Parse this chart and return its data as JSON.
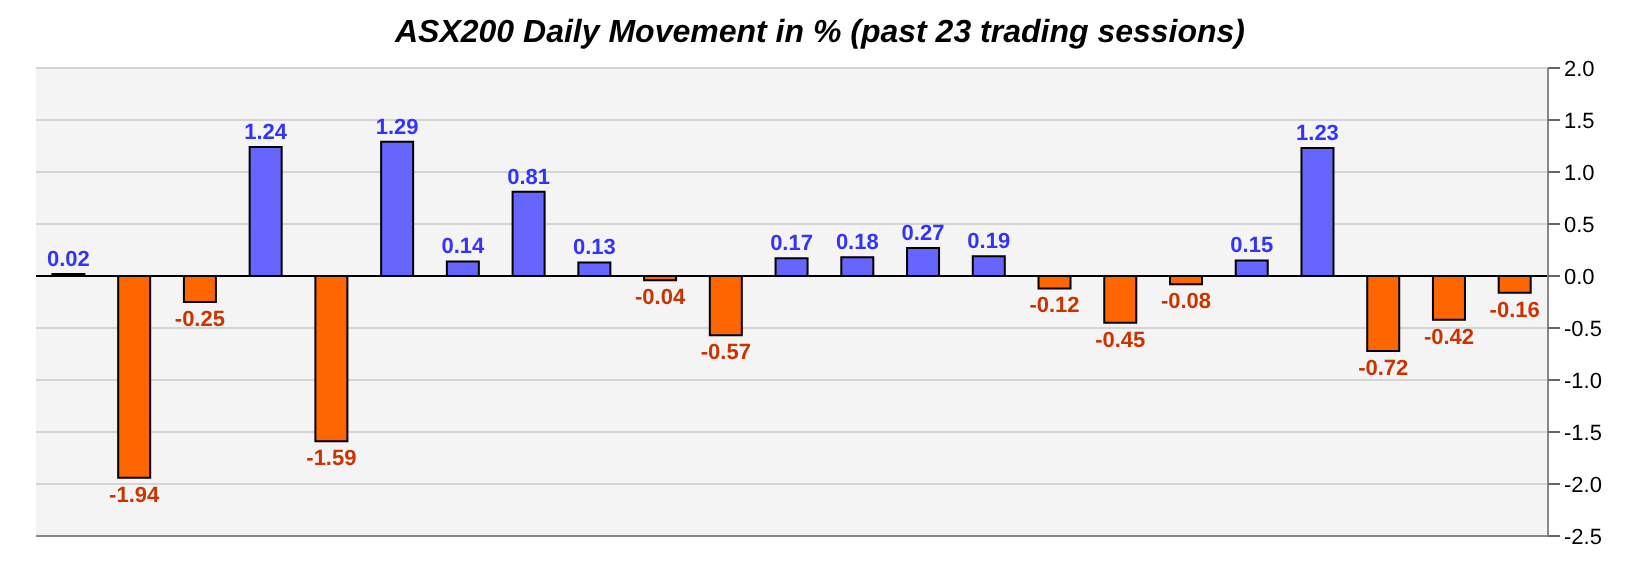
{
  "chart_data": {
    "type": "bar",
    "title": "ASX200 Daily Movement in % (past 23 trading sessions)",
    "categories": [
      null,
      null,
      null,
      null,
      null,
      null,
      null,
      null,
      null,
      null,
      null,
      null,
      null,
      null,
      null,
      null,
      null,
      null,
      null,
      null,
      null,
      null,
      null
    ],
    "values": [
      0.02,
      -1.94,
      -0.25,
      1.24,
      -1.59,
      1.29,
      0.14,
      0.81,
      0.13,
      -0.04,
      -0.57,
      0.17,
      0.18,
      0.27,
      0.19,
      -0.12,
      -0.45,
      -0.08,
      0.15,
      1.23,
      -0.72,
      -0.42,
      -0.16
    ],
    "colors": [
      "#6666ff",
      "#ff6600",
      "#ff6600",
      "#6666ff",
      "#ff6600",
      "#6666ff",
      "#6666ff",
      "#6666ff",
      "#6666ff",
      "#ff6600",
      "#ff6600",
      "#6666ff",
      "#6666ff",
      "#6666ff",
      "#6666ff",
      "#ff6600",
      "#ff6600",
      "#ff6600",
      "#6666ff",
      "#6666ff",
      "#ff6600",
      "#ff6600",
      "#ff6600"
    ],
    "ylim": [
      -2.5,
      2.0
    ],
    "yticks": [
      {
        "value": -2.5,
        "label": "-2.5"
      },
      {
        "value": -2.0,
        "label": "-2.0"
      },
      {
        "value": -1.5,
        "label": "-1.5"
      },
      {
        "value": -1.0,
        "label": "-1.0"
      },
      {
        "value": -0.5,
        "label": "-0.5"
      },
      {
        "value": 0,
        "label": "0.0"
      },
      {
        "value": 0.5,
        "label": "0.5"
      },
      {
        "value": 1.0,
        "label": "1.0"
      },
      {
        "value": 1.5,
        "label": "1.5"
      },
      {
        "value": 2.0,
        "label": "2.0"
      }
    ],
    "grid": "y",
    "data_labels": true,
    "tick_labels": "y"
  }
}
